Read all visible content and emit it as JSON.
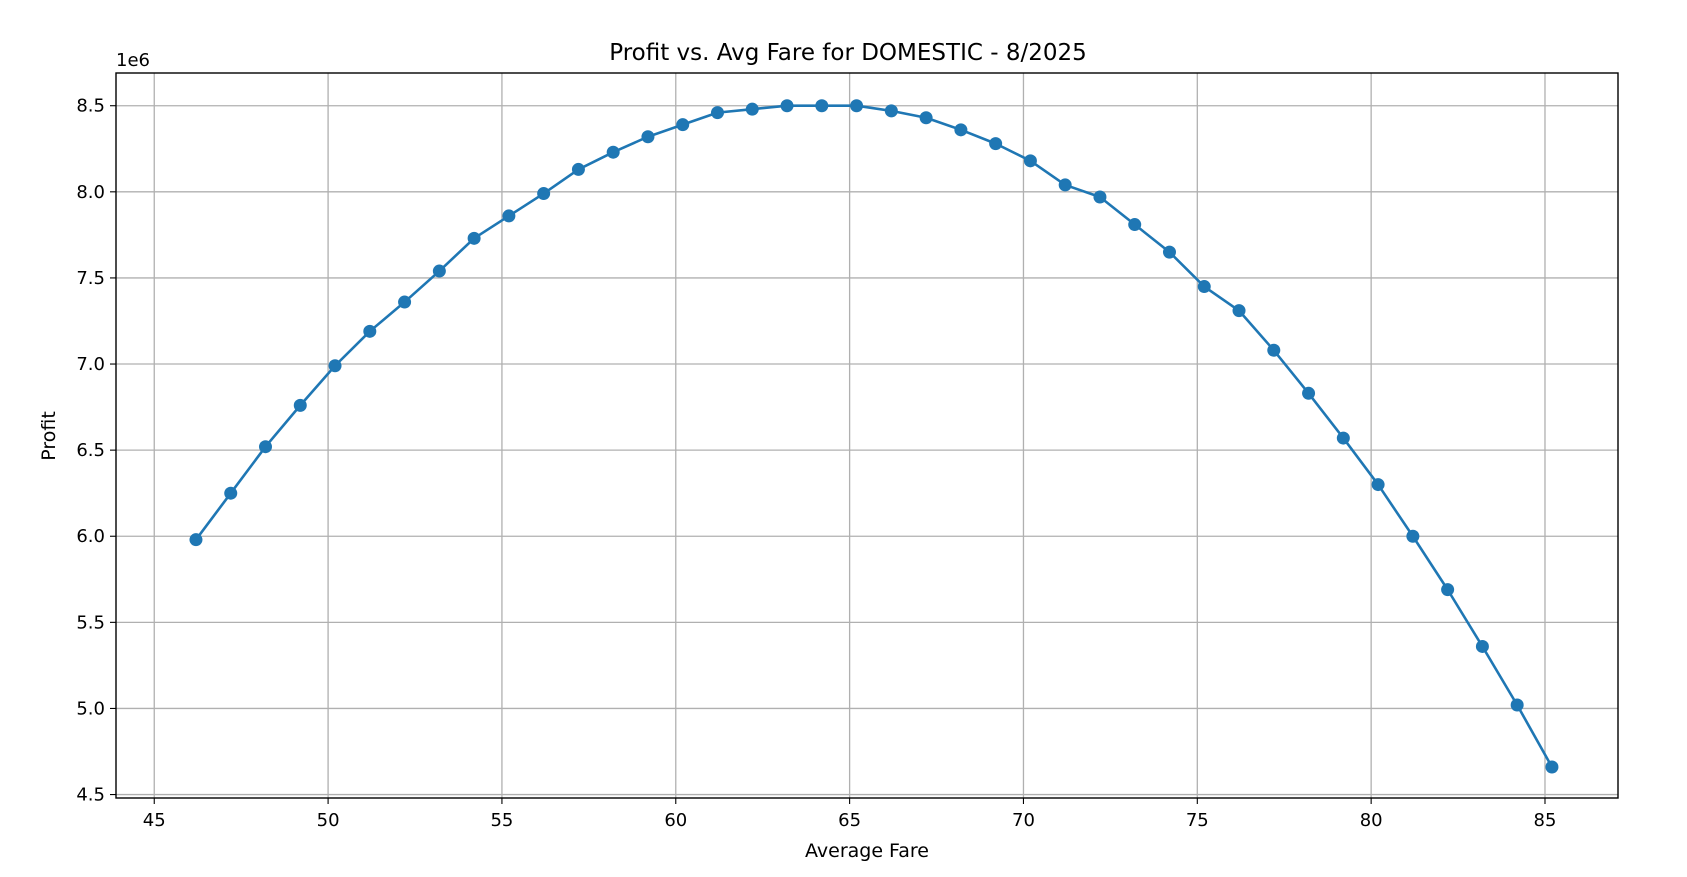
{
  "chart_data": {
    "type": "line",
    "title": "Profit vs. Avg Fare for DOMESTIC - 8/2025",
    "xlabel": "Average Fare",
    "ylabel": "Profit",
    "y_scale_label": "1e6",
    "xlim": [
      43.9,
      87.1
    ],
    "ylim": [
      4.48,
      8.69
    ],
    "x_ticks": [
      45,
      50,
      55,
      60,
      65,
      70,
      75,
      80,
      85
    ],
    "y_ticks": [
      4.5,
      5.0,
      5.5,
      6.0,
      6.5,
      7.0,
      7.5,
      8.0,
      8.5
    ],
    "x_tick_labels": [
      "45",
      "50",
      "55",
      "60",
      "65",
      "70",
      "75",
      "80",
      "85"
    ],
    "y_tick_labels": [
      "4.5",
      "5.0",
      "5.5",
      "6.0",
      "6.5",
      "7.0",
      "7.5",
      "8.0",
      "8.5"
    ],
    "grid": true,
    "line_color": "#1f77b4",
    "marker": "circle",
    "x": [
      46.2,
      47.2,
      48.2,
      49.2,
      50.2,
      51.2,
      52.2,
      53.2,
      54.2,
      55.2,
      56.2,
      57.2,
      58.2,
      59.2,
      60.2,
      61.2,
      62.2,
      63.2,
      64.2,
      65.2,
      66.2,
      67.2,
      68.2,
      69.2,
      70.2,
      71.2,
      72.2,
      73.2,
      74.2,
      75.2,
      76.2,
      77.2,
      78.2,
      79.2,
      80.2,
      81.2,
      82.2,
      83.2,
      84.2,
      85.2
    ],
    "y": [
      5.98,
      6.25,
      6.52,
      6.76,
      6.99,
      7.19,
      7.36,
      7.54,
      7.73,
      7.86,
      7.99,
      8.13,
      8.23,
      8.32,
      8.39,
      8.46,
      8.48,
      8.5,
      8.5,
      8.5,
      8.47,
      8.43,
      8.36,
      8.28,
      8.18,
      8.04,
      7.97,
      7.81,
      7.65,
      7.45,
      7.31,
      7.08,
      6.83,
      6.57,
      6.3,
      6.0,
      5.69,
      5.36,
      5.02,
      4.66
    ]
  }
}
